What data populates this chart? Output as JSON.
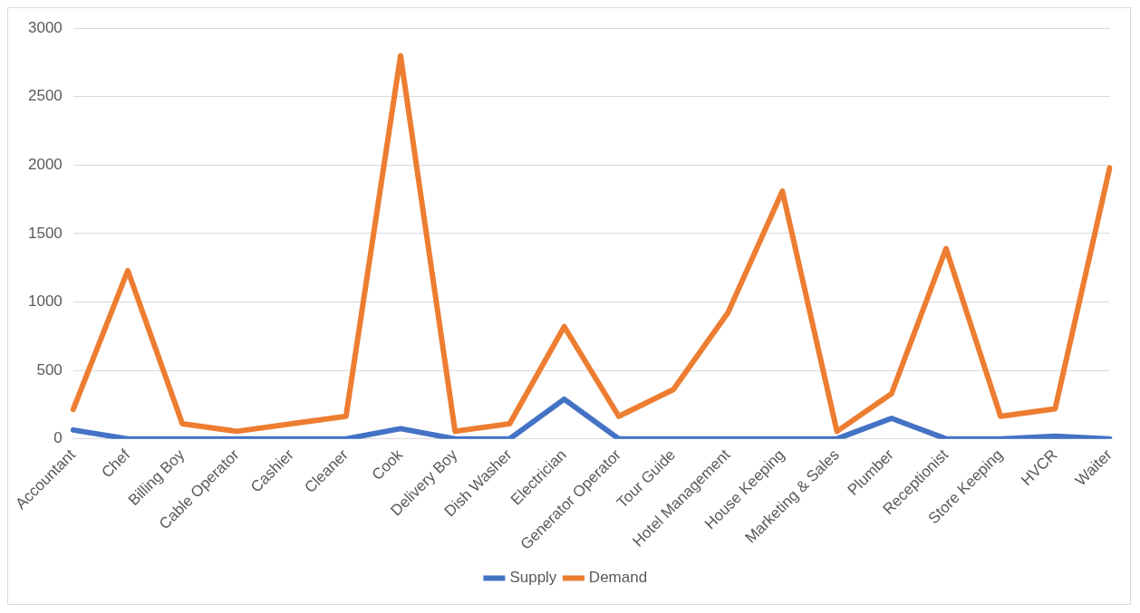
{
  "chart_data": {
    "type": "line",
    "categories": [
      "Accountant",
      "Chef",
      "Billing Boy",
      "Cable Operator",
      "Cashier",
      "Cleaner",
      "Cook",
      "Delivery Boy",
      "Dish Washer",
      "Electrician",
      "Generator Operator",
      "Tour Guide",
      "Hotel Management",
      "House Keeping",
      "Marketing & Sales",
      "Plumber",
      "Receptionist",
      "Store Keeping",
      "HVCR",
      "Waiter"
    ],
    "series": [
      {
        "name": "Supply",
        "color": "#4472c4",
        "values": [
          65,
          0,
          0,
          0,
          0,
          0,
          75,
          0,
          0,
          290,
          0,
          0,
          0,
          0,
          0,
          150,
          0,
          0,
          20,
          0
        ]
      },
      {
        "name": "Demand",
        "color": "#ed7d31",
        "values": [
          215,
          1230,
          110,
          55,
          110,
          165,
          2800,
          55,
          110,
          820,
          165,
          360,
          920,
          1810,
          55,
          330,
          1390,
          165,
          220,
          1980
        ]
      }
    ],
    "ylim": [
      0,
      3000
    ],
    "yticks": [
      0,
      500,
      1000,
      1500,
      2000,
      2500,
      3000
    ],
    "grid": "y",
    "legend": "bottom",
    "marker": "none",
    "line_style": "solid"
  }
}
